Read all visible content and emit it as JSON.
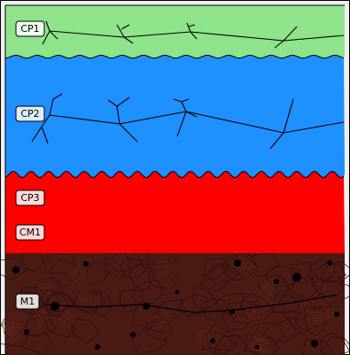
{
  "layers": [
    {
      "label": "CP1",
      "color": "#8fe38a"
    },
    {
      "label": "CP2",
      "color": "#1e90ff"
    },
    {
      "label": "CP3",
      "color": "#ff0000"
    },
    {
      "label": "CM1",
      "color": "#ff0000"
    },
    {
      "label": "M1",
      "color": "#4a1a14"
    }
  ],
  "colors": {
    "background": "#efefef",
    "frame": "#000000",
    "crack": "#000000"
  }
}
